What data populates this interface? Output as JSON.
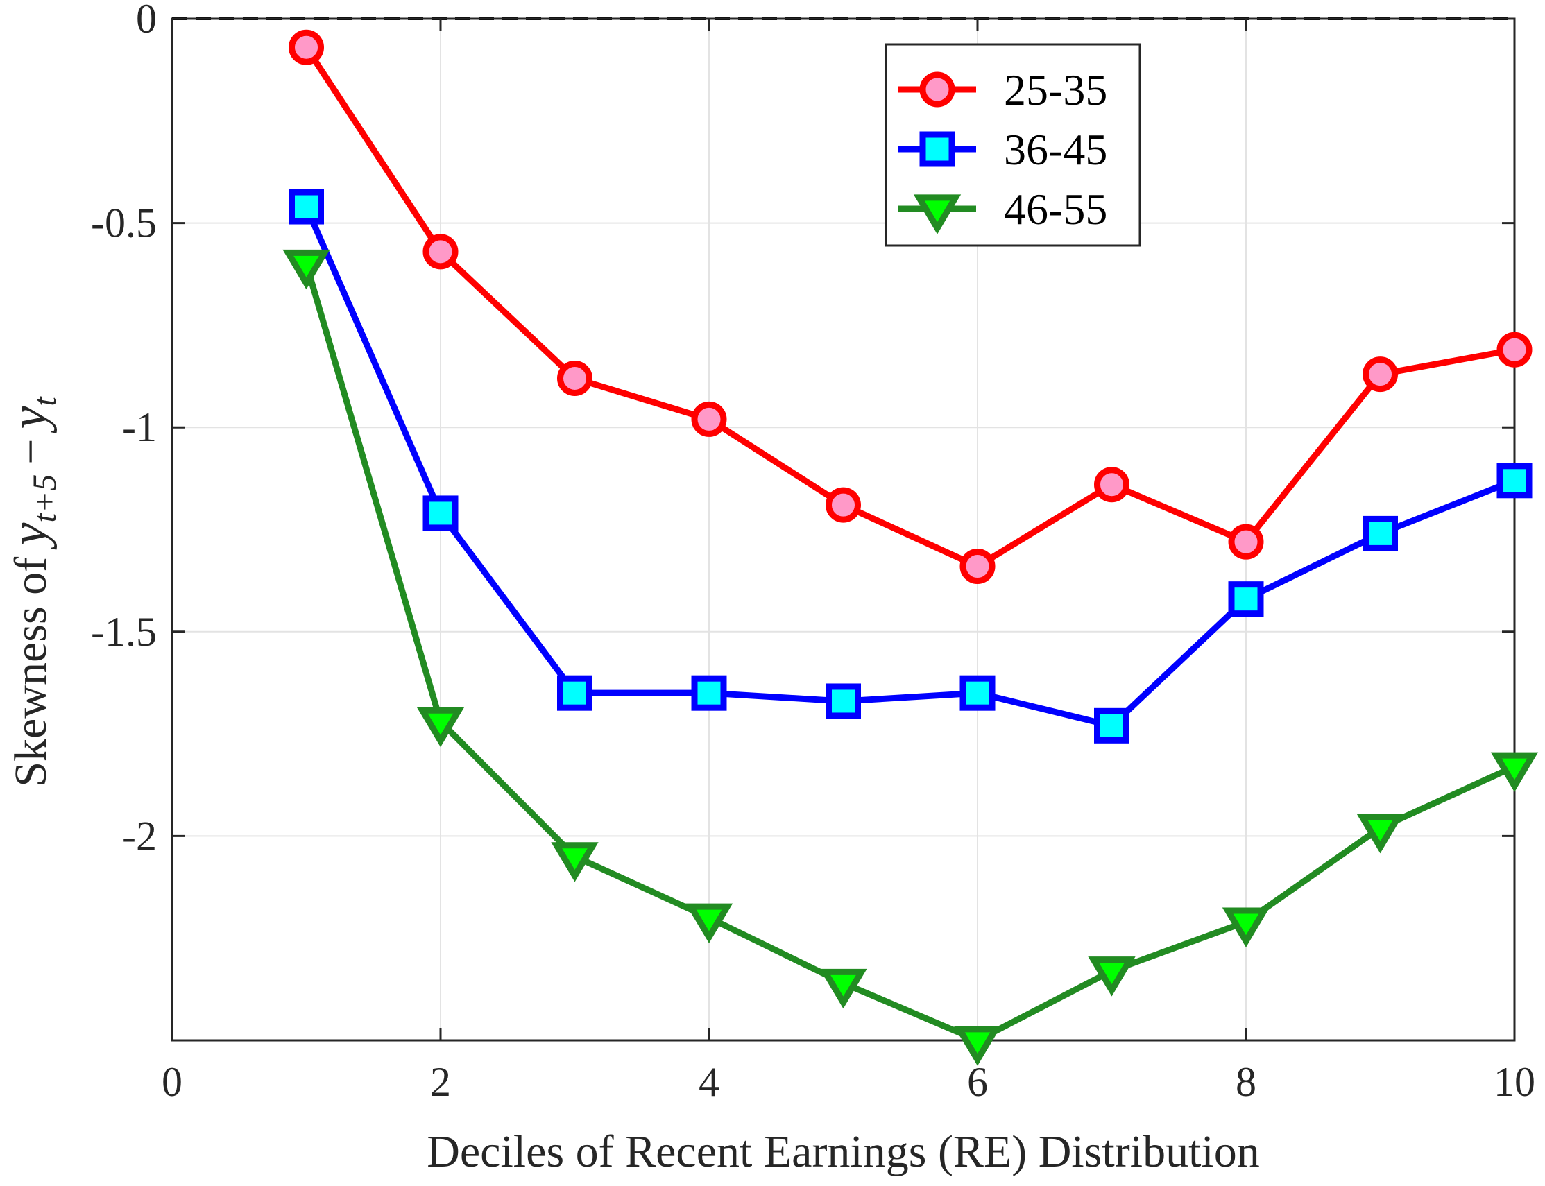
{
  "chart_data": {
    "type": "line",
    "xlabel": "Deciles of Recent Earnings (RE) Distribution",
    "ylabel": {
      "prefix": "Skewness of ",
      "math": {
        "y1": "y",
        "sub1": "t+5",
        "op": "−",
        "y2": "y",
        "sub2": "t"
      }
    },
    "xlim": [
      0,
      10
    ],
    "ylim": [
      -2.5,
      0
    ],
    "xticks": [
      0,
      2,
      4,
      6,
      8,
      10
    ],
    "xtick_labels": [
      "0",
      "2",
      "4",
      "6",
      "8",
      "10"
    ],
    "yticks": [
      0,
      -0.5,
      -1,
      -1.5,
      -2
    ],
    "ytick_labels": [
      "0",
      "-0.5",
      "-1",
      "-1.5",
      "-2"
    ],
    "grid": true,
    "legend_position": "top-right",
    "reference_line": {
      "y": 0,
      "style": "dashed",
      "color": "#000000"
    },
    "x": [
      1,
      2,
      3,
      4,
      5,
      6,
      7,
      8,
      9,
      10
    ],
    "series": [
      {
        "name": "25-35",
        "marker": "circle",
        "line_color": "#ff0000",
        "marker_fill": "#ff99c8",
        "values": [
          -0.07,
          -0.57,
          -0.88,
          -0.98,
          -1.19,
          -1.34,
          -1.14,
          -1.28,
          -0.87,
          -0.81
        ]
      },
      {
        "name": "36-45",
        "marker": "square",
        "line_color": "#0000ff",
        "marker_fill": "#00ffff",
        "values": [
          -0.46,
          -1.21,
          -1.65,
          -1.65,
          -1.67,
          -1.65,
          -1.73,
          -1.42,
          -1.26,
          -1.13
        ]
      },
      {
        "name": "46-55",
        "marker": "triangle-down",
        "line_color": "#228b22",
        "marker_fill": "#00ff00",
        "values": [
          -0.6,
          -1.72,
          -2.05,
          -2.2,
          -2.36,
          -2.5,
          -2.33,
          -2.21,
          -1.98,
          -1.83
        ]
      }
    ]
  }
}
